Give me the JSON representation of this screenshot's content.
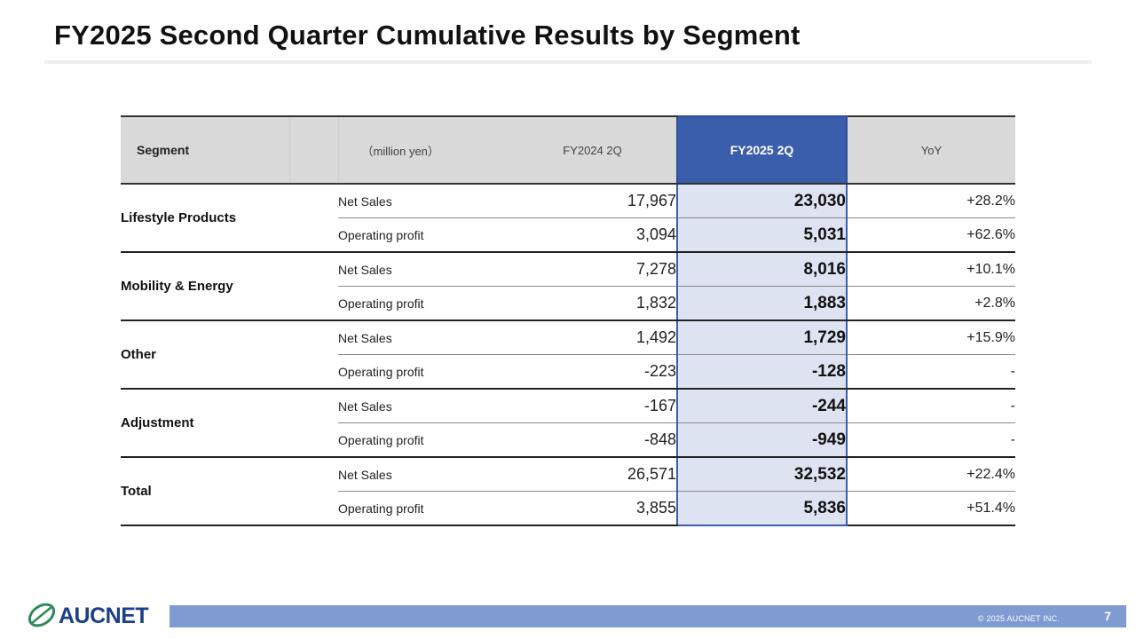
{
  "page": {
    "title": "FY2025 Second Quarter Cumulative Results by Segment",
    "page_number": "7"
  },
  "table": {
    "headers": {
      "segment": "Segment",
      "unit": "（million yen）",
      "fy2024": "FY2024 2Q",
      "fy2025": "FY2025 2Q",
      "yoy": "YoY"
    },
    "segments": [
      {
        "name": "Lifestyle Products",
        "rows": [
          {
            "metric": "Net Sales",
            "fy2024": "17,967",
            "fy2025": "23,030",
            "yoy": "+28.2%"
          },
          {
            "metric": "Operating profit",
            "fy2024": "3,094",
            "fy2025": "5,031",
            "yoy": "+62.6%"
          }
        ]
      },
      {
        "name": "Mobility & Energy",
        "rows": [
          {
            "metric": "Net Sales",
            "fy2024": "7,278",
            "fy2025": "8,016",
            "yoy": "+10.1%"
          },
          {
            "metric": "Operating profit",
            "fy2024": "1,832",
            "fy2025": "1,883",
            "yoy": "+2.8%"
          }
        ]
      },
      {
        "name": "Other",
        "rows": [
          {
            "metric": "Net Sales",
            "fy2024": "1,492",
            "fy2025": "1,729",
            "yoy": "+15.9%"
          },
          {
            "metric": "Operating profit",
            "fy2024": "-223",
            "fy2025": "-128",
            "yoy": "-"
          }
        ]
      },
      {
        "name": "Adjustment",
        "rows": [
          {
            "metric": "Net Sales",
            "fy2024": "-167",
            "fy2025": "-244",
            "yoy": "-"
          },
          {
            "metric": "Operating profit",
            "fy2024": "-848",
            "fy2025": "-949",
            "yoy": "-"
          }
        ]
      },
      {
        "name": "Total",
        "rows": [
          {
            "metric": "Net Sales",
            "fy2024": "26,571",
            "fy2025": "32,532",
            "yoy": "+22.4%"
          },
          {
            "metric": "Operating profit",
            "fy2024": "3,855",
            "fy2025": "5,836",
            "yoy": "+51.4%"
          }
        ]
      }
    ]
  },
  "footer": {
    "logo": "AUCNET",
    "copyright": "© 2025 AUCNET INC."
  },
  "colors": {
    "accent": "#3a5eac",
    "highlight_fill": "#dde3f0",
    "footer_bar": "#7f9bd1",
    "header_fill": "#d9d9d9"
  }
}
